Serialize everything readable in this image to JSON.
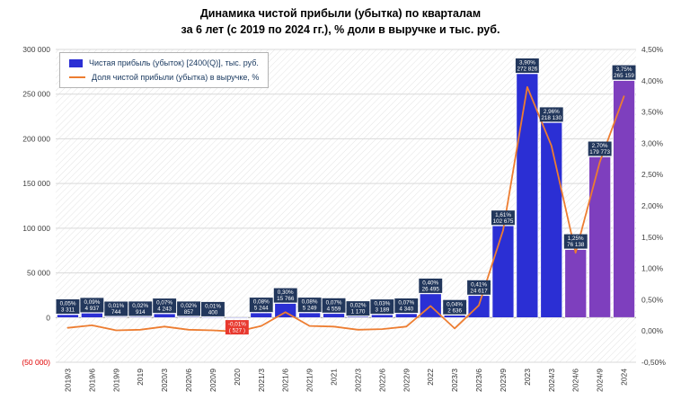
{
  "title": {
    "line1": "Динамика чистой прибыли (убытка) по кварталам",
    "line2": "за 6 лет (с 2019 по 2024 гг.), % доли в выручке и тыс. руб."
  },
  "legend": {
    "bar_label": "Чистая прибыль (убыток) [2400(Q)], тыс. руб.",
    "line_label": "Доля чистой прибыли (убытка) в выручке, %"
  },
  "colors": {
    "bar_blue": "#2b2fd4",
    "bar_purple": "#7e3fbe",
    "label_bg": "#22375c",
    "label_bg_negative": "#e8392f",
    "line": "#ed7d31",
    "grid": "#d9d9d9",
    "zero_line": "#9a9a9a",
    "hatch": "#e3e3e3",
    "negative_text": "#e00000",
    "axis_text": "#3f3f3f"
  },
  "chart_data": {
    "type": "bar+line combo",
    "title": "Динамика чистой прибыли (убытка) по кварталам за 6 лет (с 2019 по 2024 гг.), % доли в выручке и тыс. руб.",
    "legend_position": "top-left",
    "grid": true,
    "categories": [
      "2019/3",
      "2019/6",
      "2019/9",
      "2019",
      "2020/3",
      "2020/6",
      "2020/9",
      "2020",
      "2021/3",
      "2021/6",
      "2021/9",
      "2021",
      "2022/3",
      "2022/6",
      "2022/9",
      "2022",
      "2023/3",
      "2023/6",
      "2023/9",
      "2023",
      "2024/3",
      "2024/6",
      "2024/9",
      "2024"
    ],
    "series": [
      {
        "name": "Чистая прибыль (убыток) [2400(Q)], тыс. руб.",
        "type": "bar",
        "axis": "left",
        "values": [
          3311,
          4937,
          744,
          914,
          4243,
          857,
          400,
          -527,
          5244,
          15766,
          5249,
          4559,
          1170,
          3189,
          4340,
          26495,
          2636,
          24617,
          102675,
          272826,
          218130,
          76138,
          179773,
          265159
        ],
        "labels": [
          "3 311",
          "4 937",
          "744",
          "914",
          "4 243",
          "857",
          "400",
          "( 527 )",
          "5 244",
          "15 766",
          "5 249",
          "4 559",
          "1 170",
          "3 189",
          "4 340",
          "26 495",
          "2 636",
          "24 617",
          "102 675",
          "272 826",
          "218 130",
          "76 138",
          "179 773",
          "265 159"
        ],
        "colors": [
          "bar_blue",
          "bar_blue",
          "bar_blue",
          "bar_blue",
          "bar_blue",
          "bar_blue",
          "bar_blue",
          "bar_blue",
          "bar_blue",
          "bar_blue",
          "bar_blue",
          "bar_blue",
          "bar_blue",
          "bar_blue",
          "bar_blue",
          "bar_blue",
          "bar_blue",
          "bar_blue",
          "bar_blue",
          "bar_blue",
          "bar_blue",
          "bar_purple",
          "bar_purple",
          "bar_purple"
        ]
      },
      {
        "name": "Доля чистой прибыли (убытка) в выручке, %",
        "type": "line",
        "axis": "right",
        "values": [
          0.05,
          0.09,
          0.01,
          0.02,
          0.07,
          0.02,
          0.01,
          -0.01,
          0.08,
          0.3,
          0.08,
          0.07,
          0.02,
          0.03,
          0.07,
          0.4,
          0.04,
          0.41,
          1.61,
          3.9,
          2.96,
          1.25,
          2.7,
          3.75
        ],
        "labels": [
          "0,05%",
          "0,09%",
          "0,01%",
          "0,02%",
          "0,07%",
          "0,02%",
          "0,01%",
          "-0,01%",
          "0,08%",
          "0,30%",
          "0,08%",
          "0,07%",
          "0,02%",
          "0,03%",
          "0,07%",
          "0,40%",
          "0,04%",
          "0,41%",
          "1,61%",
          "3,90%",
          "2,96%",
          "1,25%",
          "2,70%",
          "3,75%"
        ]
      }
    ],
    "left_axis": {
      "min": -50000,
      "max": 300000,
      "values": [
        -50000,
        0,
        50000,
        100000,
        150000,
        200000,
        250000,
        300000
      ],
      "labels": [
        "(50 000)",
        "0",
        "50 000",
        "100 000",
        "150 000",
        "200 000",
        "250 000",
        "300 000"
      ]
    },
    "right_axis": {
      "min": -0.5,
      "max": 4.5,
      "values": [
        -0.5,
        0,
        0.5,
        1,
        1.5,
        2,
        2.5,
        3,
        3.5,
        4,
        4.5
      ],
      "labels": [
        "-0,50%",
        "0,00%",
        "0,50%",
        "1,00%",
        "1,50%",
        "2,00%",
        "2,50%",
        "3,00%",
        "3,50%",
        "4,00%",
        "4,50%"
      ]
    }
  }
}
